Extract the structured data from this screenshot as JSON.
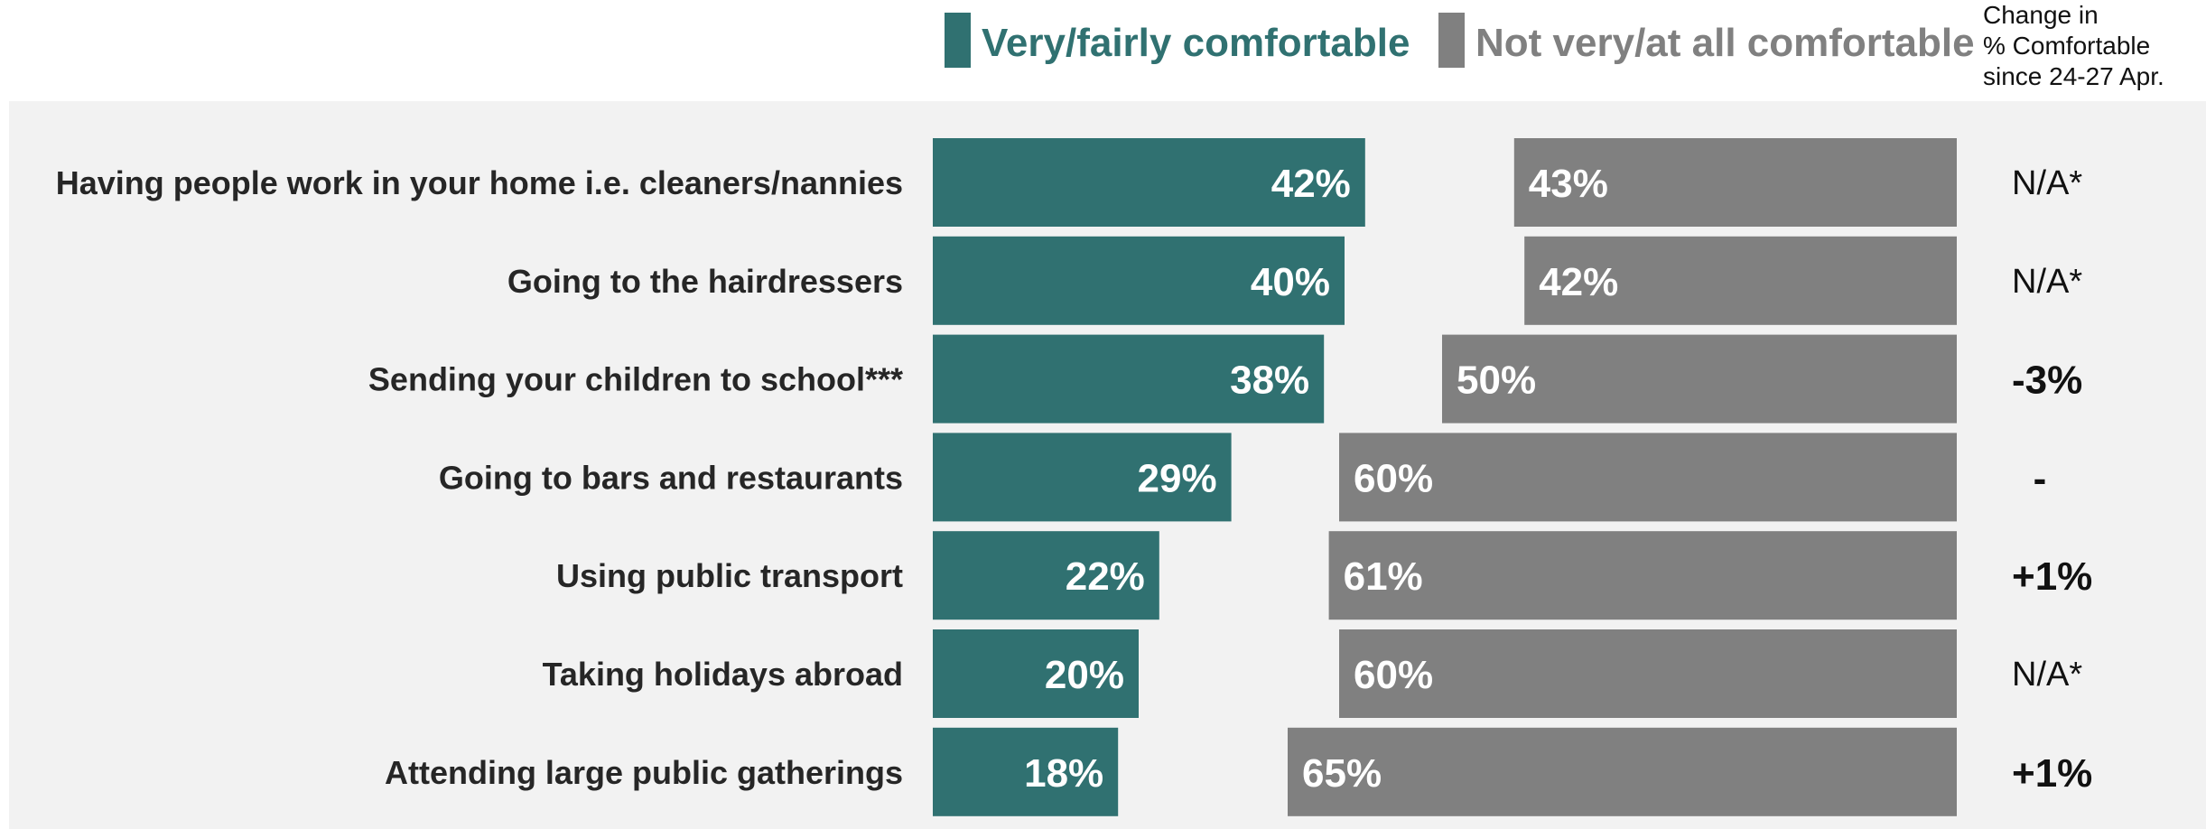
{
  "colors": {
    "comfortable": "#307171",
    "not_comfortable": "#808080",
    "background_panel": "#f2f2f2"
  },
  "legend": {
    "comfortable_label": "Very/fairly comfortable",
    "not_comfortable_label": "Not very/at all comfortable"
  },
  "change_header": {
    "line1": "Change in",
    "line2": "% Comfortable",
    "line3": "since 24-27 Apr."
  },
  "chart_data": {
    "type": "bar",
    "orientation": "horizontal",
    "categories": [
      "Having people work in your home i.e. cleaners/nannies",
      "Going to the hairdressers",
      "Sending your children to school***",
      "Going to bars and restaurants",
      "Using public transport",
      "Taking holidays abroad",
      "Attending large public gatherings"
    ],
    "series": [
      {
        "name": "Very/fairly comfortable",
        "values": [
          42,
          40,
          38,
          29,
          22,
          20,
          18
        ],
        "labels": [
          "42%",
          "40%",
          "38%",
          "29%",
          "22%",
          "20%",
          "18%"
        ],
        "anchor": "left"
      },
      {
        "name": "Not very/at all comfortable",
        "values": [
          43,
          42,
          50,
          60,
          61,
          60,
          65
        ],
        "labels": [
          "43%",
          "42%",
          "50%",
          "60%",
          "61%",
          "60%",
          "65%"
        ],
        "anchor": "right"
      }
    ],
    "change": [
      {
        "text": "N/A*",
        "bold": false
      },
      {
        "text": "N/A*",
        "bold": false
      },
      {
        "text": "-3%",
        "bold": true
      },
      {
        "text": "-",
        "bold": true
      },
      {
        "text": "+1%",
        "bold": true
      },
      {
        "text": "N/A*",
        "bold": false
      },
      {
        "text": "+1%",
        "bold": true
      }
    ],
    "xlim": [
      0,
      100
    ],
    "grid": false,
    "legend_position": "top"
  }
}
